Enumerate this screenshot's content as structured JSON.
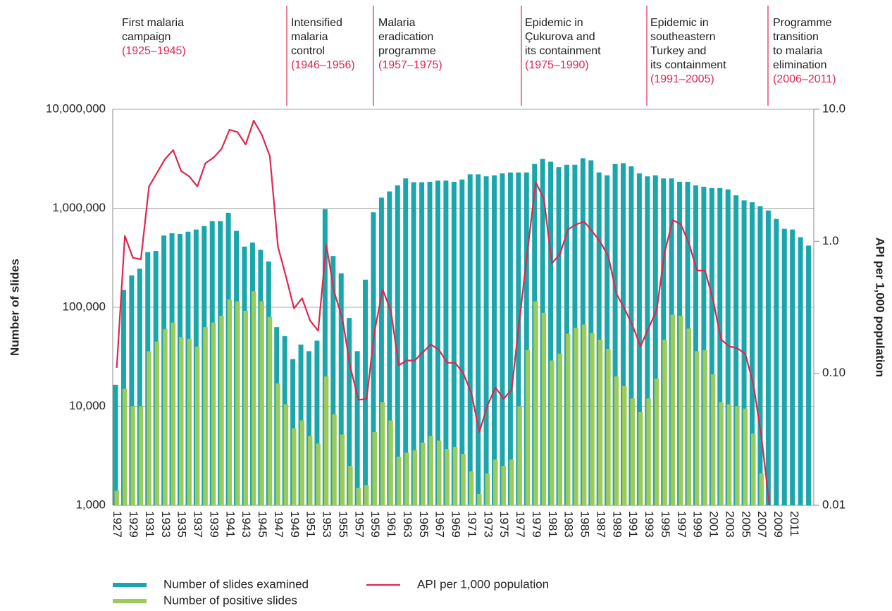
{
  "chart_data": {
    "type": "bar-line",
    "periods": [
      {
        "lines": [
          "First malaria",
          "campaign"
        ],
        "years": "(1925–1945)"
      },
      {
        "lines": [
          "Intensified",
          "malaria",
          "control"
        ],
        "years": "(1946–1956)"
      },
      {
        "lines": [
          "Malaria",
          "eradication",
          "programme"
        ],
        "years": "(1957–1975)"
      },
      {
        "lines": [
          "Epidemic in",
          "Çukurova and",
          "its containment"
        ],
        "years": "(1975–1990)"
      },
      {
        "lines": [
          "Epidemic in",
          "southeastern",
          "Turkey and",
          "its containment"
        ],
        "years": "(1991–2005)"
      },
      {
        "lines": [
          "Programme",
          "transition",
          "to malaria",
          "elimination"
        ],
        "years": "(2006–2011)"
      }
    ],
    "ylabel": "Number of slides",
    "y2label": "API per 1,000 population",
    "log_scale": true,
    "grid": true,
    "ylim": [
      1000,
      10000000
    ],
    "yticks": [
      {
        "value": 1000,
        "label": "1,000"
      },
      {
        "value": 10000,
        "label": "10,000"
      },
      {
        "value": 100000,
        "label": "100,000"
      },
      {
        "value": 1000000,
        "label": "1,000,000"
      },
      {
        "value": 10000000,
        "label": "10,000,000"
      }
    ],
    "y2lim": [
      0.01,
      10
    ],
    "y2ticks": [
      0.01,
      {
        "value": 0.1,
        "label": "0.10"
      },
      {
        "value": 1,
        "label": "1.0"
      },
      {
        "value": 10,
        "label": "10.0"
      }
    ],
    "categories": [
      "1927",
      null,
      "1929",
      null,
      "1931",
      null,
      "1933",
      null,
      "1935",
      null,
      "1937",
      null,
      "1939",
      null,
      "1941",
      null,
      "1943",
      null,
      "1945",
      null,
      "1947",
      null,
      "1949",
      null,
      "1951",
      null,
      "1953",
      null,
      "1955",
      null,
      "1957",
      null,
      "1959",
      null,
      "1961",
      null,
      "1963",
      null,
      "1965",
      null,
      "1967",
      null,
      "1969",
      null,
      "1971",
      null,
      "1973",
      null,
      "1975",
      null,
      "1977",
      null,
      "1979",
      null,
      "1981",
      null,
      "1983",
      null,
      "1985",
      null,
      "1987",
      null,
      "1989",
      null,
      "1991",
      null,
      "1993",
      null,
      "1995",
      null,
      "1997",
      null,
      "1999",
      null,
      "2001",
      null,
      "2003",
      null,
      "2005",
      null,
      "2007",
      null,
      "2009",
      null,
      "2011",
      null,
      null
    ],
    "series": [
      {
        "name": "Number of slides examined",
        "color": "#1ba6ab",
        "kind": "bar",
        "values": [
          16500,
          150000,
          210000,
          245000,
          360000,
          370000,
          530000,
          560000,
          550000,
          580000,
          610000,
          660000,
          740000,
          740000,
          900000,
          590000,
          410000,
          450000,
          380000,
          290000,
          63000,
          51000,
          30000,
          42000,
          36000,
          46000,
          980000,
          330000,
          220000,
          78000,
          36000,
          190000,
          910000,
          1280000,
          1480000,
          1700000,
          2000000,
          1830000,
          1830000,
          1850000,
          1900000,
          1900000,
          1850000,
          1950000,
          2200000,
          2200000,
          2100000,
          2150000,
          2250000,
          2300000,
          2300000,
          2300000,
          2800000,
          3150000,
          2950000,
          2600000,
          2750000,
          2750000,
          3200000,
          3050000,
          2300000,
          2150000,
          2800000,
          2850000,
          2650000,
          2250000,
          2100000,
          2150000,
          2000000,
          2000000,
          1850000,
          1850000,
          1700000,
          1650000,
          1600000,
          1600000,
          1550000,
          1350000,
          1200000,
          1150000,
          1050000,
          950000,
          780000,
          620000,
          610000,
          510000,
          420000
        ]
      },
      {
        "name": "Number of positive slides",
        "color": "#9dcb5b",
        "kind": "bar",
        "values": [
          1400,
          15000,
          10000,
          10000,
          36000,
          45000,
          60000,
          70000,
          50000,
          48000,
          40000,
          63000,
          70000,
          82000,
          120000,
          115000,
          92000,
          145000,
          115000,
          80000,
          17000,
          10500,
          6000,
          7200,
          5000,
          4200,
          20000,
          8300,
          5200,
          2500,
          1500,
          1600,
          5500,
          11000,
          7200,
          3100,
          3400,
          3600,
          4300,
          5000,
          4500,
          3700,
          3900,
          3300,
          2200,
          1300,
          2100,
          2900,
          2500,
          2900,
          10000,
          37000,
          115000,
          88000,
          29000,
          34000,
          54000,
          62000,
          67000,
          55000,
          47000,
          38000,
          20000,
          16000,
          12000,
          8700,
          12000,
          19000,
          47000,
          84000,
          82000,
          61000,
          36000,
          37000,
          21000,
          11000,
          10500,
          10000,
          9500,
          5300,
          2100,
          null,
          null,
          null,
          null,
          null,
          null
        ]
      },
      {
        "name": "API per 1,000 population",
        "color": "#e0264f",
        "kind": "line",
        "axis": "y2",
        "values": [
          0.11,
          1.1,
          0.75,
          0.73,
          2.6,
          3.3,
          4.2,
          4.9,
          3.4,
          3.1,
          2.6,
          3.9,
          4.3,
          5.0,
          7.0,
          6.7,
          5.4,
          8.2,
          6.4,
          4.4,
          0.91,
          0.54,
          0.31,
          0.37,
          0.25,
          0.21,
          0.94,
          0.41,
          0.26,
          0.11,
          0.063,
          0.064,
          0.21,
          0.43,
          0.3,
          0.115,
          0.125,
          0.125,
          0.145,
          0.165,
          0.15,
          0.12,
          0.12,
          0.1,
          0.071,
          0.036,
          0.057,
          0.078,
          0.064,
          0.075,
          0.26,
          0.88,
          2.8,
          2.1,
          0.68,
          0.8,
          1.23,
          1.34,
          1.41,
          1.19,
          0.99,
          0.77,
          0.4,
          0.31,
          0.23,
          0.16,
          0.22,
          0.3,
          0.83,
          1.45,
          1.34,
          0.97,
          0.6,
          0.6,
          0.36,
          0.18,
          0.16,
          0.155,
          0.14,
          0.083,
          0.033,
          0.01,
          null,
          null,
          null,
          null,
          null
        ]
      }
    ]
  }
}
